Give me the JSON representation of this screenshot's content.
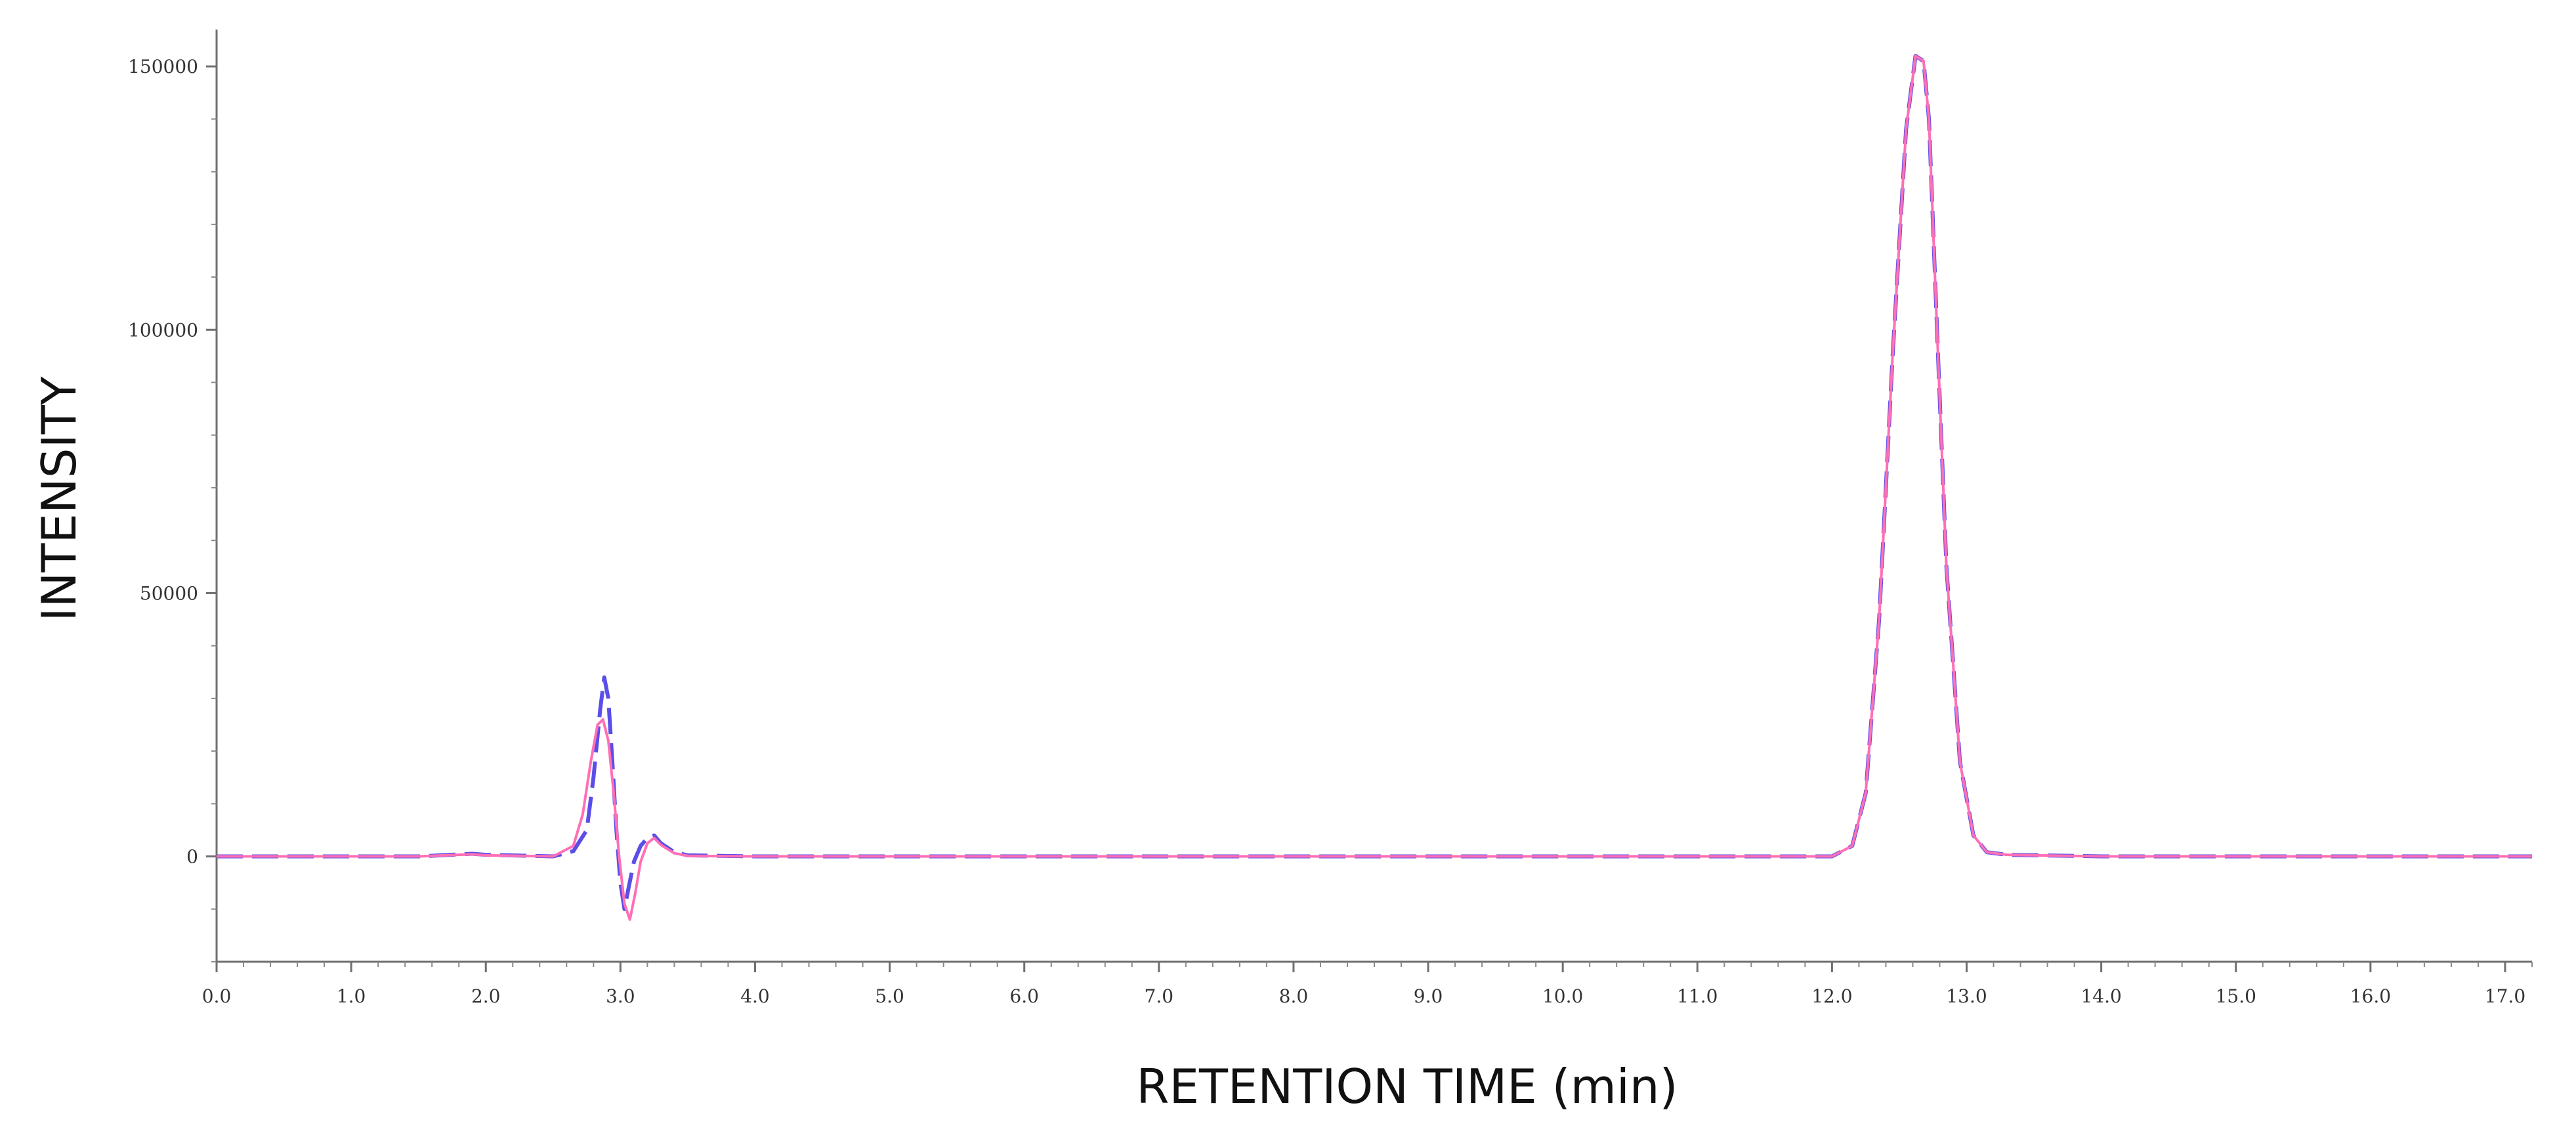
{
  "chart_data": {
    "type": "line",
    "xlabel": "RETENTION TIME (min)",
    "ylabel": "INTENSITY",
    "xlim": [
      0,
      17.2
    ],
    "ylim": [
      -20000,
      157000
    ],
    "x_ticks": [
      "0.0",
      "1.0",
      "2.0",
      "3.0",
      "4.0",
      "5.0",
      "6.0",
      "7.0",
      "8.0",
      "9.0",
      "10.0",
      "11.0",
      "12.0",
      "13.0",
      "14.0",
      "15.0",
      "16.0",
      "17.0"
    ],
    "y_ticks": [
      "0",
      "50000",
      "100000",
      "150000"
    ],
    "grid": false,
    "legend": "none",
    "series": [
      {
        "color": "#5b4ee8",
        "style": "dashed",
        "x": [
          0,
          1.5,
          1.9,
          2.0,
          2.5,
          2.65,
          2.75,
          2.8,
          2.85,
          2.88,
          2.91,
          2.94,
          2.97,
          3.0,
          3.03,
          3.06,
          3.1,
          3.15,
          3.2,
          3.25,
          3.3,
          3.4,
          3.5,
          4.0,
          5.0,
          6.0,
          7.0,
          8.0,
          9.0,
          10.0,
          11.0,
          12.0,
          12.15,
          12.25,
          12.35,
          12.45,
          12.55,
          12.62,
          12.68,
          12.72,
          12.78,
          12.85,
          12.95,
          13.05,
          13.15,
          13.3,
          14.0,
          15.0,
          16.0,
          17.2
        ],
        "y": [
          0,
          0,
          500,
          300,
          0,
          1000,
          5000,
          15000,
          28000,
          34000,
          30000,
          18000,
          5000,
          -5000,
          -10000,
          -6000,
          -1000,
          2000,
          3500,
          4000,
          2500,
          800,
          200,
          0,
          0,
          0,
          0,
          0,
          0,
          0,
          0,
          0,
          2000,
          12000,
          45000,
          95000,
          138000,
          152000,
          151000,
          140000,
          100000,
          55000,
          18000,
          4000,
          800,
          300,
          0,
          0,
          0,
          0
        ]
      },
      {
        "color": "#ff6fb5",
        "style": "solid",
        "x": [
          0,
          1.5,
          1.9,
          2.0,
          2.5,
          2.65,
          2.72,
          2.78,
          2.83,
          2.87,
          2.91,
          2.95,
          2.99,
          3.03,
          3.07,
          3.11,
          3.15,
          3.2,
          3.25,
          3.3,
          3.4,
          3.5,
          4.0,
          5.0,
          6.0,
          7.0,
          8.0,
          9.0,
          10.0,
          11.0,
          12.0,
          12.15,
          12.25,
          12.35,
          12.45,
          12.55,
          12.62,
          12.68,
          12.72,
          12.78,
          12.85,
          12.95,
          13.05,
          13.15,
          13.3,
          14.0,
          15.0,
          16.0,
          17.2
        ],
        "y": [
          0,
          0,
          400,
          200,
          0,
          2000,
          8000,
          18000,
          25000,
          26000,
          22000,
          12000,
          0,
          -9000,
          -12000,
          -7000,
          -1000,
          2500,
          3500,
          2200,
          600,
          100,
          0,
          0,
          0,
          0,
          0,
          0,
          0,
          0,
          0,
          2000,
          12000,
          45000,
          95000,
          138000,
          152000,
          151000,
          140000,
          100000,
          55000,
          18000,
          4000,
          800,
          300,
          0,
          0,
          0,
          0
        ]
      }
    ]
  }
}
